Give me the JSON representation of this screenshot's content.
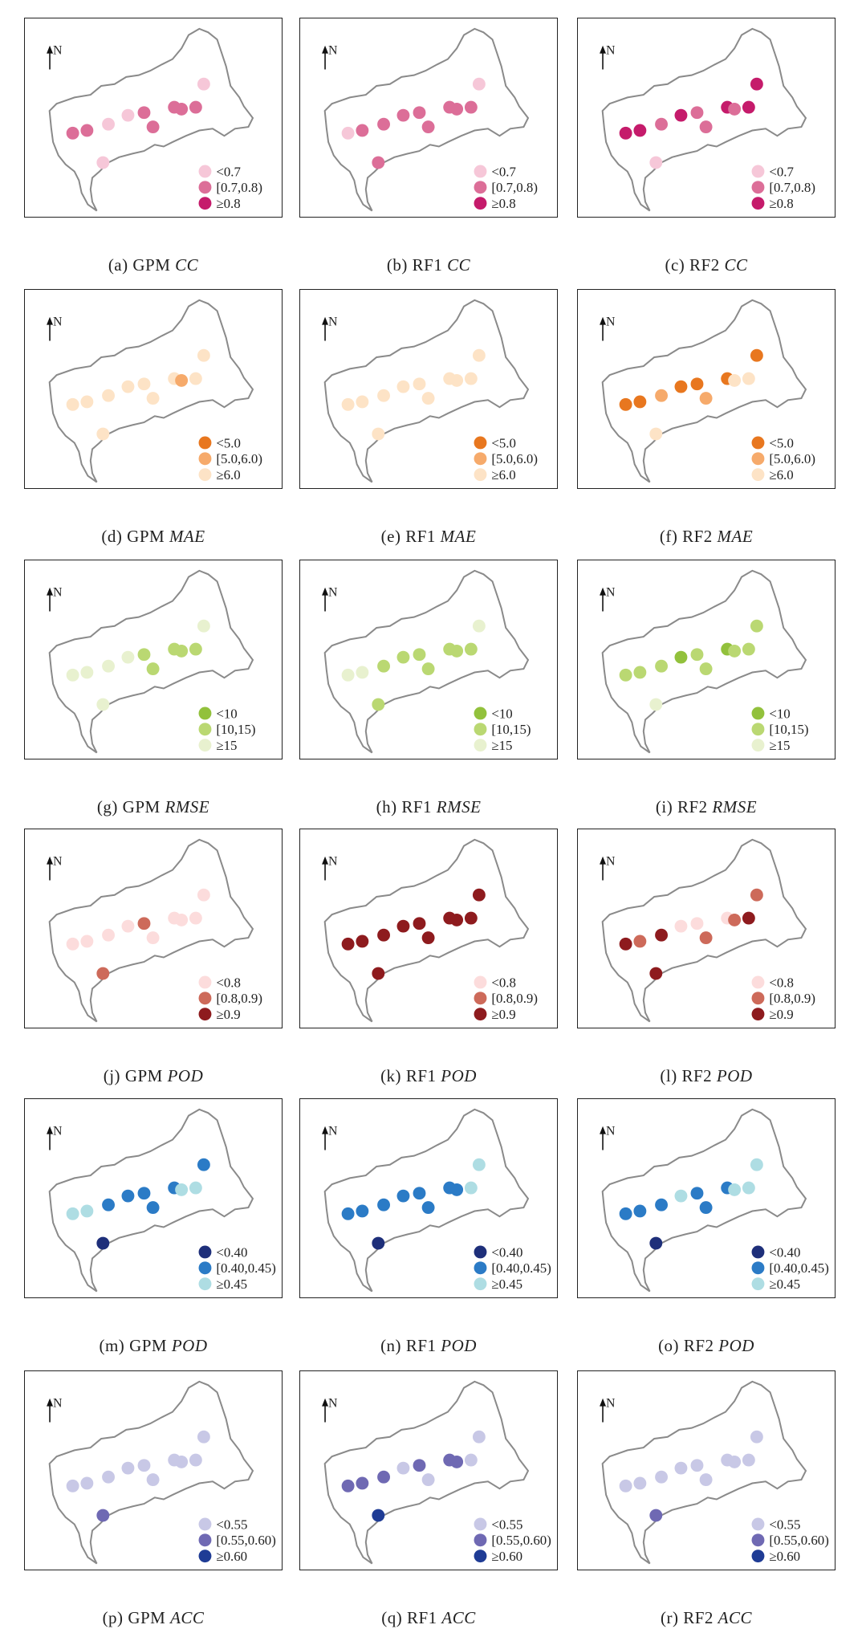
{
  "panels": [
    {
      "letter": "(a)",
      "model": "GPM",
      "metric": "CC",
      "legend": [
        "<0.7",
        "[0.7,0.8)",
        "≥0.8"
      ],
      "colors": [
        "#f6c7d8",
        "#dc6e98",
        "#c51b6b"
      ],
      "classes": [
        0,
        1,
        1,
        0,
        0,
        1,
        1,
        1,
        1,
        0,
        1
      ]
    },
    {
      "letter": "(b)",
      "model": "RF1",
      "metric": "CC",
      "legend": [
        "<0.7",
        "[0.7,0.8)",
        "≥0.8"
      ],
      "colors": [
        "#f6c7d8",
        "#dc6e98",
        "#c51b6b"
      ],
      "classes": [
        1,
        0,
        1,
        1,
        1,
        1,
        1,
        1,
        1,
        0,
        1
      ]
    },
    {
      "letter": "(c)",
      "model": "RF2",
      "metric": "CC",
      "legend": [
        "<0.7",
        "[0.7,0.8)",
        "≥0.8"
      ],
      "colors": [
        "#f6c7d8",
        "#dc6e98",
        "#c51b6b"
      ],
      "classes": [
        0,
        2,
        2,
        1,
        2,
        1,
        1,
        2,
        1,
        2,
        2
      ]
    },
    {
      "letter": "(d)",
      "model": "GPM",
      "metric": "MAE",
      "legend": [
        "<5.0",
        "[5.0,6.0)",
        "≥6.0"
      ],
      "colors": [
        "#e8771f",
        "#f6aa6b",
        "#fde3c6"
      ],
      "classes": [
        2,
        2,
        2,
        2,
        2,
        2,
        2,
        2,
        1,
        2,
        2
      ]
    },
    {
      "letter": "(e)",
      "model": "RF1",
      "metric": "MAE",
      "legend": [
        "<5.0",
        "[5.0,6.0)",
        "≥6.0"
      ],
      "colors": [
        "#e8771f",
        "#f6aa6b",
        "#fde3c6"
      ],
      "classes": [
        2,
        2,
        2,
        2,
        2,
        2,
        2,
        2,
        2,
        2,
        2
      ]
    },
    {
      "letter": "(f)",
      "model": "RF2",
      "metric": "MAE",
      "legend": [
        "<5.0",
        "[5.0,6.0)",
        "≥6.0"
      ],
      "colors": [
        "#e8771f",
        "#f6aa6b",
        "#fde3c6"
      ],
      "classes": [
        2,
        0,
        0,
        1,
        0,
        0,
        1,
        0,
        2,
        0,
        2
      ]
    },
    {
      "letter": "(g)",
      "model": "GPM",
      "metric": "RMSE",
      "legend": [
        "<10",
        "[10,15)",
        "≥15"
      ],
      "colors": [
        "#92c13c",
        "#bad872",
        "#e8f1cf"
      ],
      "classes": [
        2,
        2,
        2,
        2,
        2,
        1,
        1,
        1,
        1,
        2,
        1
      ]
    },
    {
      "letter": "(h)",
      "model": "RF1",
      "metric": "RMSE",
      "legend": [
        "<10",
        "[10,15)",
        "≥15"
      ],
      "colors": [
        "#92c13c",
        "#bad872",
        "#e8f1cf"
      ],
      "classes": [
        1,
        2,
        2,
        1,
        1,
        1,
        1,
        1,
        1,
        2,
        1
      ]
    },
    {
      "letter": "(i)",
      "model": "RF2",
      "metric": "RMSE",
      "legend": [
        "<10",
        "[10,15)",
        "≥15"
      ],
      "colors": [
        "#92c13c",
        "#bad872",
        "#e8f1cf"
      ],
      "classes": [
        2,
        1,
        1,
        1,
        0,
        1,
        1,
        0,
        1,
        1,
        1
      ]
    },
    {
      "letter": "(j)",
      "model": "GPM",
      "metric": "POD",
      "legend": [
        "<0.8",
        "[0.8,0.9)",
        "≥0.9"
      ],
      "colors": [
        "#fcdcdc",
        "#cd6a5a",
        "#8e1b1e"
      ],
      "classes": [
        1,
        0,
        0,
        0,
        0,
        1,
        0,
        0,
        0,
        0,
        0
      ]
    },
    {
      "letter": "(k)",
      "model": "RF1",
      "metric": "POD",
      "legend": [
        "<0.8",
        "[0.8,0.9)",
        "≥0.9"
      ],
      "colors": [
        "#fcdcdc",
        "#cd6a5a",
        "#8e1b1e"
      ],
      "classes": [
        2,
        2,
        2,
        2,
        2,
        2,
        2,
        2,
        2,
        2,
        2
      ]
    },
    {
      "letter": "(l)",
      "model": "RF2",
      "metric": "POD",
      "legend": [
        "<0.8",
        "[0.8,0.9)",
        "≥0.9"
      ],
      "colors": [
        "#fcdcdc",
        "#cd6a5a",
        "#8e1b1e"
      ],
      "classes": [
        2,
        2,
        1,
        2,
        0,
        0,
        1,
        0,
        1,
        1,
        2
      ]
    },
    {
      "letter": "(m)",
      "model": "GPM",
      "metric": "POD",
      "legend": [
        "<0.40",
        "[0.40,0.45)",
        "≥0.45"
      ],
      "colors": [
        "#1e2f7a",
        "#2b7bc6",
        "#aedde3"
      ],
      "classes": [
        0,
        2,
        2,
        1,
        1,
        1,
        1,
        1,
        2,
        1,
        2
      ]
    },
    {
      "letter": "(n)",
      "model": "RF1",
      "metric": "POD",
      "legend": [
        "<0.40",
        "[0.40,0.45)",
        "≥0.45"
      ],
      "colors": [
        "#1e2f7a",
        "#2b7bc6",
        "#aedde3"
      ],
      "classes": [
        0,
        1,
        1,
        1,
        1,
        1,
        1,
        1,
        1,
        2,
        2
      ]
    },
    {
      "letter": "(o)",
      "model": "RF2",
      "metric": "POD",
      "legend": [
        "<0.40",
        "[0.40,0.45)",
        "≥0.45"
      ],
      "colors": [
        "#1e2f7a",
        "#2b7bc6",
        "#aedde3"
      ],
      "classes": [
        0,
        1,
        1,
        1,
        2,
        1,
        1,
        1,
        2,
        2,
        2
      ]
    },
    {
      "letter": "(p)",
      "model": "GPM",
      "metric": "ACC",
      "legend": [
        "<0.55",
        "[0.55,0.60)",
        "≥0.60"
      ],
      "colors": [
        "#c8c8e6",
        "#6f69b3",
        "#1f3c95"
      ],
      "classes": [
        1,
        0,
        0,
        0,
        0,
        0,
        0,
        0,
        0,
        0,
        0
      ]
    },
    {
      "letter": "(q)",
      "model": "RF1",
      "metric": "ACC",
      "legend": [
        "<0.55",
        "[0.55,0.60)",
        "≥0.60"
      ],
      "colors": [
        "#c8c8e6",
        "#6f69b3",
        "#1f3c95"
      ],
      "classes": [
        2,
        1,
        1,
        1,
        0,
        1,
        0,
        1,
        1,
        0,
        0
      ]
    },
    {
      "letter": "(r)",
      "model": "RF2",
      "metric": "ACC",
      "legend": [
        "<0.55",
        "[0.55,0.60)",
        "≥0.60"
      ],
      "colors": [
        "#c8c8e6",
        "#6f69b3",
        "#1f3c95"
      ],
      "classes": [
        1,
        0,
        0,
        0,
        0,
        0,
        0,
        0,
        0,
        0,
        0
      ]
    }
  ],
  "north_label": "N"
}
